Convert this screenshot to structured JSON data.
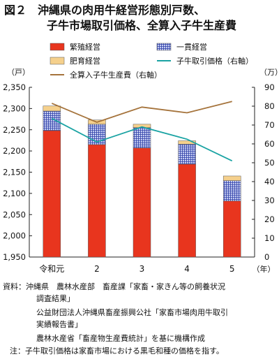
{
  "figure": {
    "title_line1": "図２　沖縄県の肉用牛経営形態別戸数、",
    "title_line2": "子牛市場取引価格、全算入子牛生産費"
  },
  "chart_data": {
    "type": "bar",
    "categories": [
      "令和元",
      "2",
      "3",
      "4",
      "5"
    ],
    "x_unit": "（年）",
    "left_axis": {
      "unit": "（戸）",
      "ylim": [
        1950,
        2350
      ],
      "ticks": [
        1950,
        2000,
        2050,
        2100,
        2150,
        2200,
        2250,
        2300,
        2350
      ]
    },
    "right_axis": {
      "unit": "（万）",
      "ylim": [
        0,
        90
      ],
      "ticks": [
        0,
        10,
        20,
        30,
        40,
        50,
        60,
        70,
        80,
        90
      ]
    },
    "stacked_series": [
      {
        "name": "繁殖経営",
        "color": "#e8351e",
        "values": [
          2248,
          2215,
          2207,
          2169,
          2082
        ]
      },
      {
        "name": "一貫経営",
        "color": "#a8b4e8",
        "pattern": "grid",
        "values": [
          46,
          48,
          48,
          47,
          48
        ]
      },
      {
        "name": "肥育経営",
        "color": "#f5d08c",
        "values": [
          12,
          10,
          8,
          8,
          11
        ]
      }
    ],
    "line_series": [
      {
        "name": "子牛取引価格（右軸）",
        "color": "#1aa3a3",
        "values": [
          73.5,
          61,
          69,
          62.5,
          51
        ]
      },
      {
        "name": "全算入子牛生産費（右軸）",
        "color": "#a5733b",
        "values": [
          81.5,
          71.5,
          79.5,
          76.5,
          82.5
        ]
      }
    ],
    "grid": false,
    "legend_position": "top"
  },
  "source": {
    "lines": [
      "資料：沖縄県　農林水産部　畜産課「家畜・家きん等の飼養状況",
      "調査結果」",
      "公益財団法人沖縄県畜産振興公社「家畜市場肉用牛取引",
      "実績報告書」",
      "農林水産省「畜産物生産費統計」を基に機構作成"
    ],
    "note": "注：子牛取引価格は家畜市場における黒毛和種の価格を指す。"
  }
}
